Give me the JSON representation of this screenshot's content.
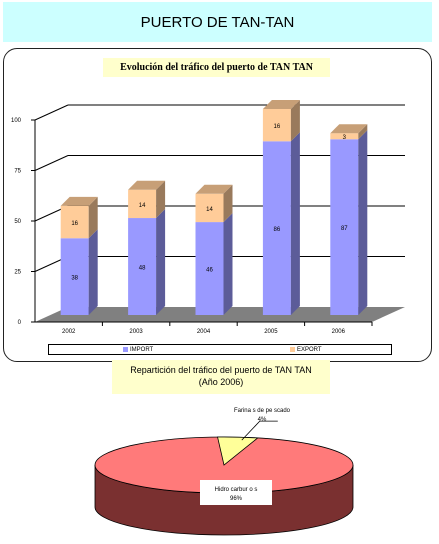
{
  "header": {
    "title": "PUERTO DE TAN-TAN"
  },
  "colors": {
    "import": "#9999ff",
    "export": "#ffcc99",
    "hidrocarburos": "#ff7a7a",
    "harinas": "#ffff99",
    "pie_side": "#7a3030",
    "floor": "#808080"
  },
  "chart_data": [
    {
      "type": "bar",
      "title": "Evolución del tráfico del puerto de TAN TAN",
      "categories": [
        "2002",
        "2003",
        "2004",
        "2005",
        "2006"
      ],
      "series": [
        {
          "name": "IMPORT",
          "values": [
            38,
            48,
            46,
            86,
            87
          ]
        },
        {
          "name": "EXPORT",
          "values": [
            16,
            14,
            14,
            16,
            3
          ]
        }
      ],
      "yticks": [
        "0",
        "25",
        "50",
        "75",
        "100"
      ],
      "ylim": [
        0,
        100
      ],
      "stacked": true,
      "grid": true,
      "legend": "bottom"
    },
    {
      "type": "pie",
      "title": "Repartición del tráfico del puerto de TAN TAN",
      "subtitle": "(Año 2006)",
      "labels": [
        "Hidrocarburos",
        "Harinas de pescado"
      ],
      "values": [
        96,
        4
      ],
      "data_labels": [
        {
          "name": "Hidro carbur o s",
          "pct": "96%"
        },
        {
          "name": "Farina s de pe scado",
          "pct": "4%"
        }
      ]
    }
  ]
}
